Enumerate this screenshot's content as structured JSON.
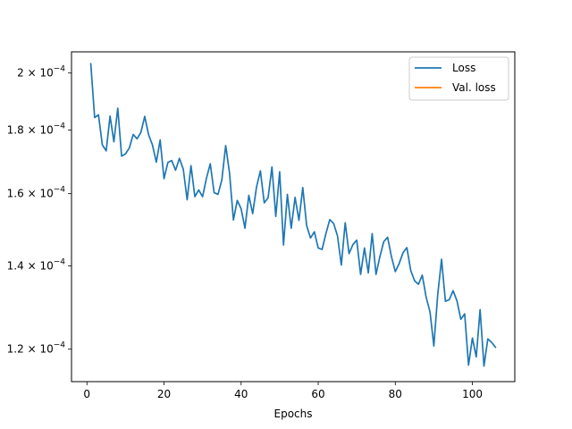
{
  "chart_data": {
    "type": "line",
    "title": "",
    "xlabel": "Epochs",
    "ylabel": "",
    "yscale": "log",
    "xlim": [
      -4,
      111
    ],
    "ylim": [
      0.000113,
      0.000208
    ],
    "x_ticks": [
      0,
      20,
      40,
      60,
      80,
      100
    ],
    "y_ticks": [
      {
        "value": 0.00012,
        "base": "1.2 × 10",
        "exp": "−4"
      },
      {
        "value": 0.00014,
        "base": "1.4 × 10",
        "exp": "−4"
      },
      {
        "value": 0.00016,
        "base": "1.6 × 10",
        "exp": "−4"
      },
      {
        "value": 0.00018,
        "base": "1.8 × 10",
        "exp": "−4"
      },
      {
        "value": 0.0002,
        "base": "2 × 10",
        "exp": "−4"
      }
    ],
    "grid": false,
    "legend": {
      "position": "top-right"
    },
    "colors": {
      "loss": "#1f77b4",
      "val_loss": "#ff7f0e",
      "axis": "#000000"
    },
    "series": [
      {
        "name": "Loss",
        "color": "#1f77b4",
        "x": [
          1,
          2,
          3,
          4,
          5,
          6,
          7,
          8,
          9,
          10,
          11,
          12,
          13,
          14,
          15,
          16,
          17,
          18,
          19,
          20,
          21,
          22,
          23,
          24,
          25,
          26,
          27,
          28,
          29,
          30,
          31,
          32,
          33,
          34,
          35,
          36,
          37,
          38,
          39,
          40,
          41,
          42,
          43,
          44,
          45,
          46,
          47,
          48,
          49,
          50,
          51,
          52,
          53,
          54,
          55,
          56,
          57,
          58,
          59,
          60,
          61,
          62,
          63,
          64,
          65,
          66,
          67,
          68,
          69,
          70,
          71,
          72,
          73,
          74,
          75,
          76,
          77,
          78,
          79,
          80,
          81,
          82,
          83,
          84,
          85,
          86,
          87,
          88,
          89,
          90,
          91,
          92,
          93,
          94,
          95,
          96,
          97,
          98,
          99,
          100,
          101,
          102,
          103,
          104,
          105,
          106
        ],
        "y": [
          0.0002035,
          0.0001842,
          0.0001851,
          0.0001751,
          0.0001732,
          0.0001847,
          0.0001761,
          0.0001874,
          0.0001715,
          0.0001722,
          0.0001741,
          0.0001785,
          0.0001771,
          0.0001792,
          0.0001846,
          0.0001784,
          0.0001751,
          0.0001696,
          0.0001767,
          0.0001645,
          0.0001695,
          0.0001701,
          0.0001671,
          0.0001708,
          0.0001674,
          0.0001582,
          0.0001685,
          0.0001591,
          0.0001611,
          0.0001591,
          0.0001646,
          0.0001691,
          0.0001603,
          0.0001598,
          0.0001641,
          0.0001749,
          0.0001662,
          0.0001524,
          0.000158,
          0.0001556,
          0.0001501,
          0.0001595,
          0.0001542,
          0.000162,
          0.0001669,
          0.0001573,
          0.0001588,
          0.0001681,
          0.0001534,
          0.0001666,
          0.0001455,
          0.0001598,
          0.0001501,
          0.0001589,
          0.0001523,
          0.0001618,
          0.0001508,
          0.0001474,
          0.0001491,
          0.0001447,
          0.0001443,
          0.0001486,
          0.0001525,
          0.0001514,
          0.000148,
          0.0001402,
          0.0001516,
          0.0001432,
          0.0001456,
          0.0001468,
          0.0001378,
          0.0001447,
          0.0001382,
          0.0001486,
          0.0001378,
          0.0001424,
          0.0001464,
          0.0001476,
          0.0001424,
          0.0001385,
          0.0001406,
          0.0001434,
          0.0001448,
          0.0001388,
          0.0001362,
          0.0001353,
          0.0001376,
          0.0001321,
          0.0001286,
          0.0001207,
          0.0001327,
          0.0001417,
          0.0001311,
          0.0001315,
          0.0001337,
          0.0001312,
          0.0001268,
          0.0001281,
          0.0001165,
          0.0001225,
          0.0001183,
          0.0001291,
          0.0001163,
          0.0001223,
          0.0001215,
          0.0001204
        ]
      },
      {
        "name": "Val. loss",
        "color": "#ff7f0e",
        "x": [],
        "y": []
      }
    ]
  }
}
